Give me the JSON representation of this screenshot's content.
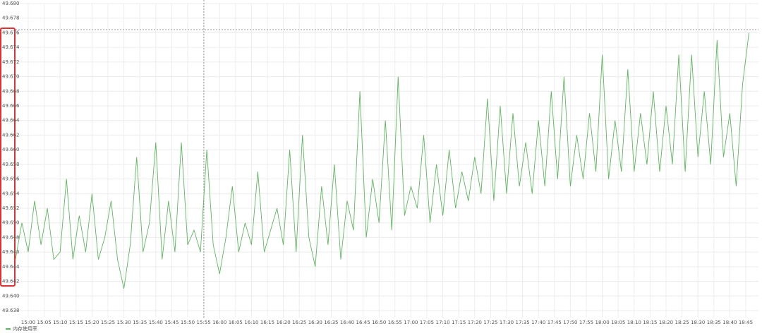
{
  "chart_data": {
    "type": "line",
    "x": [
      "14:56",
      "14:58",
      "15:00",
      "15:02",
      "15:04",
      "15:06",
      "15:08",
      "15:10",
      "15:12",
      "15:14",
      "15:16",
      "15:18",
      "15:20",
      "15:22",
      "15:24",
      "15:26",
      "15:28",
      "15:30",
      "15:32",
      "15:34",
      "15:36",
      "15:38",
      "15:40",
      "15:42",
      "15:44",
      "15:46",
      "15:48",
      "15:50",
      "15:52",
      "15:54",
      "15:56",
      "15:58",
      "16:00",
      "16:02",
      "16:04",
      "16:06",
      "16:08",
      "16:10",
      "16:12",
      "16:14",
      "16:16",
      "16:18",
      "16:20",
      "16:22",
      "16:24",
      "16:26",
      "16:28",
      "16:30",
      "16:32",
      "16:34",
      "16:36",
      "16:38",
      "16:40",
      "16:42",
      "16:44",
      "16:46",
      "16:48",
      "16:50",
      "16:52",
      "16:54",
      "16:56",
      "16:58",
      "17:00",
      "17:02",
      "17:04",
      "17:06",
      "17:08",
      "17:10",
      "17:12",
      "17:14",
      "17:16",
      "17:18",
      "17:20",
      "17:22",
      "17:24",
      "17:26",
      "17:28",
      "17:30",
      "17:32",
      "17:34",
      "17:36",
      "17:38",
      "17:40",
      "17:42",
      "17:44",
      "17:46",
      "17:48",
      "17:50",
      "17:52",
      "17:54",
      "17:56",
      "17:58",
      "18:00",
      "18:02",
      "18:04",
      "18:06",
      "18:08",
      "18:10",
      "18:12",
      "18:14",
      "18:16",
      "18:18",
      "18:20",
      "18:22",
      "18:24",
      "18:26",
      "18:28",
      "18:30",
      "18:32",
      "18:34",
      "18:36",
      "18:38",
      "18:40",
      "18:42",
      "18:44",
      "18:46"
    ],
    "series": [
      {
        "name": "内存使用率",
        "color": "#5cb85c",
        "values": [
          49.645,
          49.65,
          49.646,
          49.653,
          49.647,
          49.652,
          49.645,
          49.646,
          49.656,
          49.645,
          49.651,
          49.646,
          49.654,
          49.645,
          49.648,
          49.653,
          49.645,
          49.641,
          49.647,
          49.659,
          49.646,
          49.65,
          49.661,
          49.645,
          49.653,
          49.646,
          49.661,
          49.647,
          49.649,
          49.646,
          49.66,
          49.647,
          49.643,
          49.648,
          49.655,
          49.646,
          49.65,
          49.647,
          49.657,
          49.646,
          49.649,
          49.652,
          49.647,
          49.66,
          49.646,
          49.662,
          49.648,
          49.644,
          49.655,
          49.647,
          49.658,
          49.645,
          49.653,
          49.649,
          49.668,
          49.648,
          49.656,
          49.65,
          49.664,
          49.649,
          49.67,
          49.651,
          49.655,
          49.652,
          49.662,
          49.65,
          49.658,
          49.651,
          49.66,
          49.652,
          49.657,
          49.653,
          49.659,
          49.654,
          49.667,
          49.653,
          49.666,
          49.654,
          49.665,
          49.655,
          49.661,
          49.654,
          49.664,
          49.655,
          49.668,
          49.656,
          49.67,
          49.655,
          49.662,
          49.656,
          49.665,
          49.657,
          49.673,
          49.656,
          49.664,
          49.657,
          49.671,
          49.657,
          49.665,
          49.658,
          49.668,
          49.657,
          49.666,
          49.658,
          49.673,
          49.657,
          49.673,
          49.659,
          49.668,
          49.658,
          49.675,
          49.659,
          49.665,
          49.655,
          49.669,
          49.676
        ]
      }
    ],
    "ylim": [
      49.638,
      49.68
    ],
    "yticks": [
      49.638,
      {
        "value": 49.64,
        "label": "49.640"
      },
      49.642,
      49.644,
      49.646,
      49.648,
      {
        "value": 49.65,
        "label": "49.650"
      },
      49.652,
      49.654,
      49.656,
      49.658,
      {
        "value": 49.66,
        "label": "49.660"
      },
      49.662,
      49.664,
      49.666,
      49.668,
      {
        "value": 49.67,
        "label": "49.670"
      },
      49.672,
      49.674,
      49.676,
      49.678,
      {
        "value": 49.68,
        "label": "49.680"
      }
    ],
    "xticks": [
      "15:00",
      "15:05",
      "15:10",
      "15:15",
      "15:20",
      "15:25",
      "15:30",
      "15:35",
      "15:40",
      "15:45",
      "15:50",
      "15:55",
      "16:00",
      "16:05",
      "16:10",
      "16:15",
      "16:20",
      "16:25",
      "16:30",
      "16:35",
      "16:40",
      "16:45",
      "16:50",
      "16:55",
      "17:00",
      "17:05",
      "17:10",
      "17:15",
      "17:20",
      "17:25",
      "17:30",
      "17:35",
      "17:40",
      "17:45",
      "17:50",
      "17:55",
      "18:00",
      "18:05",
      "18:10",
      "18:15",
      "18:20",
      "18:25",
      "18:30",
      "18:35",
      "18:40",
      "18:45"
    ],
    "grid": true
  }
}
